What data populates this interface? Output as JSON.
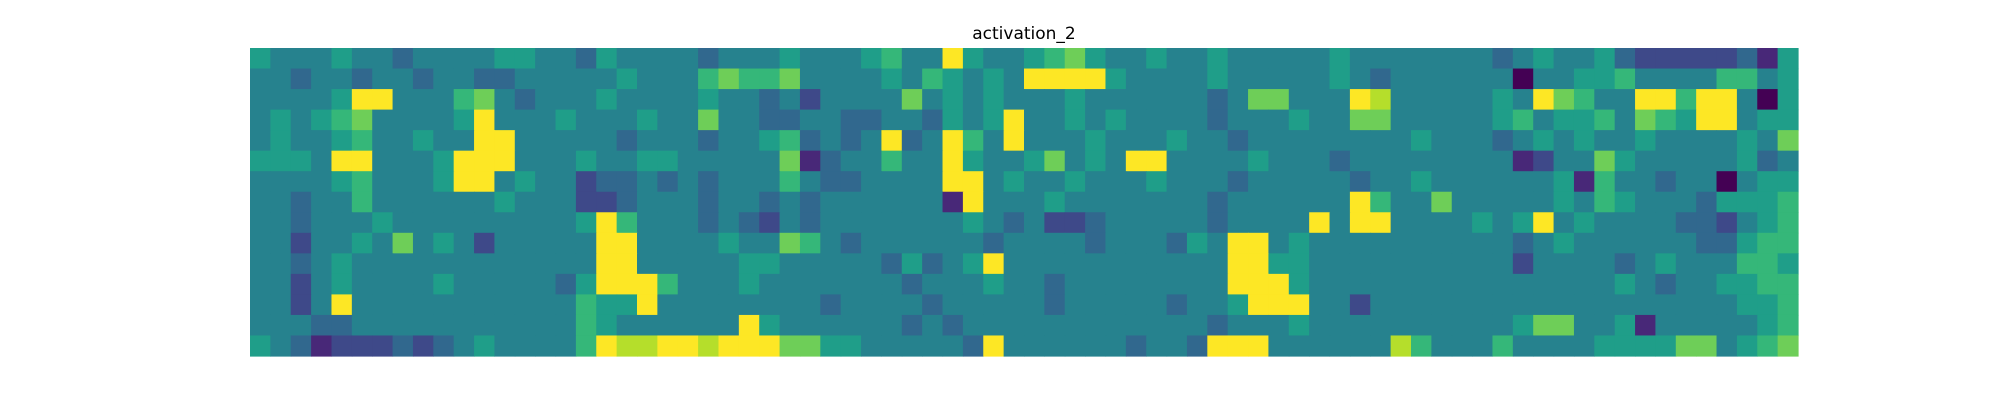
{
  "chart_data": {
    "type": "heatmap",
    "title": "activation_2",
    "colormap": "viridis",
    "values": [
      [
        5,
        4,
        4,
        4,
        5,
        4,
        4,
        3,
        4,
        4,
        4,
        4,
        5,
        5,
        4,
        4,
        3,
        5,
        4,
        4,
        4,
        4,
        3,
        4,
        4,
        4,
        5,
        4,
        4,
        4,
        5,
        6,
        4,
        4,
        9,
        5,
        4,
        4,
        5,
        6,
        7,
        5,
        4,
        4,
        5,
        4,
        4,
        5,
        4,
        4,
        4,
        4,
        4,
        5,
        4,
        4,
        4,
        4,
        4,
        4,
        4,
        3,
        4,
        5,
        4,
        4,
        5,
        3,
        2,
        2,
        2,
        2,
        2,
        3,
        1,
        5
      ],
      [
        4,
        4,
        3,
        4,
        4,
        3,
        4,
        4,
        3,
        4,
        4,
        3,
        3,
        4,
        4,
        4,
        4,
        4,
        5,
        4,
        4,
        4,
        6,
        7,
        6,
        6,
        7,
        4,
        4,
        4,
        4,
        5,
        4,
        6,
        5,
        4,
        5,
        4,
        9,
        9,
        9,
        9,
        5,
        4,
        4,
        4,
        4,
        5,
        4,
        4,
        4,
        4,
        4,
        5,
        4,
        3,
        4,
        4,
        4,
        4,
        4,
        4,
        0,
        4,
        4,
        5,
        5,
        6,
        4,
        4,
        4,
        4,
        6,
        6,
        4,
        5
      ],
      [
        4,
        4,
        4,
        4,
        5,
        9,
        9,
        4,
        4,
        4,
        6,
        7,
        4,
        3,
        4,
        4,
        4,
        5,
        4,
        4,
        4,
        4,
        5,
        4,
        4,
        3,
        4,
        2,
        4,
        4,
        4,
        4,
        7,
        4,
        5,
        4,
        5,
        4,
        4,
        4,
        5,
        4,
        4,
        4,
        4,
        4,
        4,
        3,
        4,
        7,
        7,
        4,
        4,
        4,
        9,
        8,
        4,
        4,
        4,
        4,
        4,
        5,
        4,
        9,
        7,
        6,
        4,
        4,
        9,
        9,
        6,
        9,
        9,
        4,
        0,
        5
      ],
      [
        4,
        5,
        4,
        5,
        6,
        7,
        4,
        4,
        4,
        4,
        5,
        9,
        4,
        4,
        4,
        5,
        4,
        4,
        4,
        5,
        4,
        4,
        7,
        4,
        4,
        3,
        3,
        4,
        4,
        3,
        3,
        4,
        4,
        3,
        5,
        4,
        5,
        9,
        4,
        4,
        5,
        4,
        5,
        4,
        4,
        4,
        4,
        3,
        4,
        4,
        4,
        5,
        4,
        4,
        7,
        7,
        4,
        4,
        4,
        4,
        4,
        5,
        6,
        4,
        5,
        5,
        6,
        4,
        7,
        6,
        5,
        9,
        9,
        4,
        5,
        5
      ],
      [
        4,
        5,
        4,
        4,
        5,
        6,
        4,
        4,
        5,
        4,
        4,
        9,
        9,
        4,
        4,
        4,
        4,
        4,
        3,
        4,
        4,
        4,
        3,
        4,
        4,
        5,
        6,
        3,
        4,
        3,
        4,
        9,
        3,
        4,
        9,
        6,
        4,
        9,
        4,
        4,
        4,
        5,
        4,
        4,
        4,
        5,
        4,
        4,
        3,
        4,
        4,
        4,
        4,
        4,
        4,
        4,
        4,
        5,
        4,
        4,
        4,
        3,
        4,
        5,
        4,
        5,
        4,
        4,
        5,
        4,
        4,
        4,
        4,
        5,
        4,
        7
      ],
      [
        5,
        5,
        5,
        4,
        9,
        9,
        4,
        4,
        4,
        5,
        9,
        9,
        9,
        4,
        4,
        4,
        5,
        4,
        4,
        5,
        5,
        4,
        4,
        4,
        4,
        4,
        7,
        1,
        3,
        4,
        4,
        6,
        4,
        4,
        9,
        5,
        4,
        4,
        5,
        7,
        4,
        5,
        4,
        9,
        9,
        4,
        4,
        4,
        4,
        5,
        4,
        4,
        4,
        3,
        4,
        4,
        4,
        4,
        4,
        4,
        4,
        4,
        1,
        2,
        4,
        4,
        7,
        5,
        4,
        4,
        4,
        4,
        4,
        5,
        3,
        4
      ],
      [
        4,
        4,
        4,
        4,
        5,
        6,
        4,
        4,
        4,
        5,
        9,
        9,
        4,
        5,
        4,
        4,
        2,
        3,
        3,
        4,
        3,
        4,
        3,
        4,
        4,
        4,
        6,
        4,
        3,
        3,
        4,
        4,
        4,
        4,
        9,
        9,
        4,
        5,
        4,
        4,
        5,
        4,
        4,
        4,
        5,
        4,
        4,
        4,
        3,
        4,
        4,
        4,
        4,
        4,
        3,
        4,
        4,
        5,
        4,
        4,
        4,
        4,
        4,
        4,
        5,
        1,
        6,
        4,
        4,
        3,
        4,
        4,
        0,
        4,
        5,
        5
      ],
      [
        4,
        4,
        3,
        4,
        4,
        6,
        4,
        4,
        4,
        4,
        4,
        4,
        5,
        4,
        4,
        4,
        2,
        2,
        3,
        4,
        4,
        4,
        3,
        4,
        4,
        3,
        4,
        3,
        4,
        4,
        4,
        4,
        4,
        4,
        1,
        9,
        4,
        4,
        4,
        5,
        4,
        4,
        4,
        4,
        4,
        4,
        4,
        3,
        4,
        4,
        4,
        4,
        4,
        4,
        9,
        6,
        4,
        4,
        7,
        4,
        4,
        4,
        4,
        4,
        5,
        4,
        6,
        5,
        4,
        4,
        4,
        3,
        5,
        5,
        5,
        6
      ],
      [
        4,
        4,
        3,
        4,
        4,
        4,
        5,
        4,
        4,
        4,
        4,
        4,
        4,
        4,
        4,
        4,
        5,
        9,
        6,
        4,
        4,
        4,
        3,
        4,
        3,
        2,
        4,
        3,
        4,
        4,
        4,
        4,
        4,
        4,
        4,
        5,
        4,
        3,
        4,
        2,
        2,
        3,
        4,
        4,
        4,
        4,
        4,
        3,
        4,
        4,
        4,
        4,
        9,
        4,
        9,
        9,
        4,
        4,
        4,
        4,
        5,
        4,
        5,
        9,
        4,
        5,
        4,
        4,
        4,
        4,
        3,
        3,
        2,
        4,
        5,
        6
      ],
      [
        4,
        4,
        2,
        4,
        4,
        5,
        4,
        7,
        4,
        5,
        4,
        2,
        4,
        4,
        4,
        4,
        4,
        9,
        9,
        4,
        4,
        4,
        4,
        5,
        4,
        4,
        7,
        6,
        4,
        3,
        4,
        4,
        4,
        4,
        4,
        4,
        3,
        4,
        4,
        4,
        4,
        3,
        4,
        4,
        4,
        3,
        5,
        4,
        9,
        9,
        4,
        5,
        4,
        4,
        4,
        4,
        4,
        4,
        4,
        4,
        4,
        4,
        3,
        4,
        5,
        4,
        4,
        4,
        4,
        4,
        4,
        3,
        3,
        5,
        6,
        6
      ],
      [
        4,
        4,
        3,
        4,
        5,
        4,
        4,
        4,
        4,
        4,
        4,
        4,
        4,
        4,
        4,
        4,
        4,
        9,
        9,
        4,
        4,
        4,
        4,
        4,
        5,
        5,
        4,
        4,
        4,
        4,
        4,
        3,
        5,
        3,
        4,
        5,
        9,
        4,
        4,
        4,
        4,
        4,
        4,
        4,
        4,
        4,
        4,
        4,
        9,
        9,
        5,
        5,
        4,
        4,
        4,
        4,
        4,
        4,
        4,
        4,
        4,
        4,
        2,
        4,
        4,
        4,
        4,
        3,
        4,
        5,
        4,
        4,
        4,
        6,
        6,
        5
      ],
      [
        4,
        4,
        2,
        4,
        5,
        4,
        4,
        4,
        4,
        5,
        4,
        4,
        4,
        4,
        4,
        3,
        5,
        9,
        9,
        9,
        6,
        4,
        4,
        4,
        5,
        4,
        4,
        4,
        4,
        4,
        4,
        4,
        3,
        4,
        4,
        4,
        5,
        4,
        4,
        3,
        4,
        4,
        4,
        4,
        4,
        4,
        4,
        4,
        9,
        9,
        9,
        5,
        4,
        4,
        4,
        4,
        4,
        4,
        4,
        4,
        4,
        4,
        4,
        4,
        4,
        4,
        4,
        5,
        4,
        3,
        4,
        4,
        5,
        5,
        6,
        6
      ],
      [
        4,
        4,
        2,
        4,
        9,
        4,
        4,
        4,
        4,
        4,
        4,
        4,
        4,
        4,
        4,
        4,
        6,
        5,
        5,
        9,
        4,
        4,
        4,
        4,
        4,
        4,
        4,
        4,
        3,
        4,
        4,
        4,
        4,
        3,
        4,
        4,
        4,
        4,
        4,
        3,
        4,
        4,
        4,
        4,
        4,
        3,
        4,
        4,
        5,
        9,
        9,
        9,
        4,
        4,
        2,
        4,
        4,
        4,
        4,
        4,
        4,
        4,
        4,
        4,
        4,
        4,
        4,
        4,
        4,
        4,
        4,
        4,
        4,
        5,
        5,
        6
      ],
      [
        4,
        4,
        4,
        3,
        3,
        4,
        4,
        4,
        4,
        4,
        4,
        4,
        4,
        4,
        4,
        4,
        6,
        5,
        4,
        4,
        4,
        4,
        4,
        4,
        9,
        5,
        4,
        4,
        4,
        4,
        4,
        4,
        3,
        4,
        3,
        4,
        4,
        4,
        4,
        4,
        4,
        4,
        4,
        4,
        4,
        4,
        4,
        3,
        4,
        4,
        4,
        5,
        4,
        4,
        4,
        4,
        4,
        4,
        4,
        4,
        4,
        4,
        5,
        7,
        7,
        4,
        4,
        5,
        1,
        4,
        4,
        4,
        4,
        4,
        5,
        6
      ],
      [
        5,
        4,
        3,
        1,
        2,
        2,
        2,
        3,
        2,
        3,
        4,
        5,
        4,
        4,
        4,
        4,
        6,
        9,
        8,
        8,
        9,
        9,
        8,
        9,
        9,
        9,
        7,
        7,
        5,
        5,
        4,
        4,
        4,
        4,
        4,
        3,
        9,
        4,
        4,
        4,
        4,
        4,
        4,
        3,
        4,
        4,
        3,
        9,
        9,
        9,
        4,
        4,
        4,
        4,
        4,
        4,
        8,
        6,
        4,
        4,
        4,
        6,
        4,
        4,
        4,
        4,
        5,
        5,
        5,
        5,
        7,
        7,
        4,
        5,
        6,
        7
      ]
    ]
  }
}
